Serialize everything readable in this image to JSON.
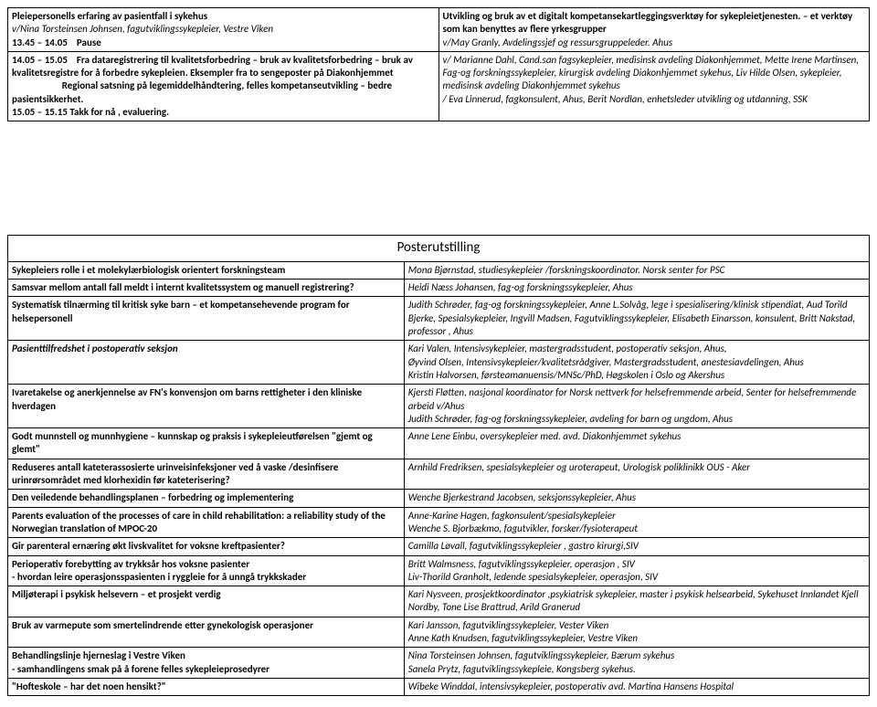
{
  "top_rows": [
    {
      "left": [
        {
          "text": "Pleiepersonells erfaring av pasientfall i sykehus",
          "bold": true
        },
        {
          "text": "v/Nina Torsteinsen Johnsen, fagutviklingssykepleier, Vestre Viken",
          "italic": true
        },
        {
          "text": "13.45 – 14.05    Pause",
          "bold": true
        }
      ],
      "right": [
        {
          "text": "Utvikling og bruk av et digitalt kompetansekartleggingsverktøy for sykepleietjenesten. – et verktøy som kan benyttes av flere yrkesgrupper",
          "bold": true
        },
        {
          "text": "v/May Granly, Avdelingssjef og ressursgruppeleder. Ahus",
          "italic": true
        }
      ]
    },
    {
      "left": [
        {
          "text": "14.05 – 15.05    Fra dataregistrering til kvalitetsforbedring – bruk av kvalitetsforbedring – bruk av kvalitetsregistre for å forbedre sykepleien. Eksempler fra to sengeposter på Diakonhjemmet",
          "bold": true
        },
        {
          "text": "                      Regional satsning på legemiddelhåndtering,  felles kompetanseutvikling – bedre pasientsikkerhet.",
          "bold": true
        },
        {
          "text": "15.05 – 15.15 Takk for nå , evaluering.",
          "bold": true
        }
      ],
      "right": [
        {
          "text": "v/ Marianne Dahl, Cand.san fagsykepleier, medisinsk avdeling Diakonhjemmet, Mette Irene Martinsen, Fag-og forskningssykepleier, kirurgisk avdeling Diakonhjemmet sykehus, Liv Hilde Olsen, sykepleier, medisinsk avdeling Diakonhjemmet sykehus",
          "italic": true
        },
        {
          "text": "/ Eva Linnerud, fagkonsulent, Ahus, Berit Nordlan, enhetsleder utvikling og utdanning, SSK",
          "italic": true
        }
      ]
    }
  ],
  "poster_title": "Posterutstilling",
  "poster_rows": [
    {
      "left": [
        {
          "text": "Sykepleiers rolle i et molekylærbiologisk orientert forskningsteam",
          "bold": true
        }
      ],
      "right": [
        {
          "text": "Mona Bjørnstad, studiesykepleier /forskningskoordinator. Norsk senter for PSC",
          "italic": true
        }
      ]
    },
    {
      "left": [
        {
          "text": "Samsvar mellom antall fall meldt i internt kvalitetssystem og manuell registrering?",
          "bold": true
        }
      ],
      "right": [
        {
          "text": "Heidi Næss Johansen, fag-og forskningssykepleier, Ahus",
          "italic": true
        }
      ]
    },
    {
      "left": [
        {
          "text": "Systematisk tilnærming til kritisk syke barn – et kompetansehevende program for helsepersonell",
          "bold": true
        }
      ],
      "right": [
        {
          "text": "Judith Schrøder, fag-og forskningssykepleier, Anne L.Solvåg, lege i spesialisering/klinisk stipendiat, Aud Torild Bjerke, Spesialsykepleier, Ingvill Madsen, Fagutviklingssykepleier, Elisabeth Einarsson, konsulent, Britt Nakstad, professor , Ahus",
          "italic": true
        }
      ]
    },
    {
      "left": [
        {
          "text": "Pasienttilfredshet i postoperativ seksjon",
          "bold": true,
          "italic": true
        }
      ],
      "right": [
        {
          "text": "Kari Valen, Intensivsykepleier, mastergradsstudent, postoperativ seksjon, Ahus,",
          "italic": true
        },
        {
          "text": "Øyvind Olsen, Intensivsykepleier/kvalitetsrådgiver, Mastergradsstudent, anestesiavdelingen, Ahus",
          "italic": true
        },
        {
          "text": "Kristin Halvorsen, førsteamanuensis/MNSc/PhD, Høgskolen i Oslo og Akershus",
          "italic": true
        }
      ]
    },
    {
      "left": [
        {
          "text": "Ivaretakelse og anerkjennelse av FN's konvensjon om barns rettigheter i den kliniske hverdagen",
          "bold": true
        }
      ],
      "right": [
        {
          "text": "Kjersti Fløtten, nasjonal koordinator for Norsk nettverk for helsefremmende arbeid, Senter for helsefremmende arbeid v/Ahus",
          "italic": true
        },
        {
          "text": "Judith Schrøder, fag-og forskningssykepleier, avdeling for barn og ungdom, Ahus",
          "italic": true
        }
      ]
    },
    {
      "left": [
        {
          "text": "Godt munnstell og munnhygiene – kunnskap og praksis i sykepleieutførelsen \"gjemt og glemt\"",
          "bold": true
        }
      ],
      "right": [
        {
          "text": "Anne Lene Einbu, oversykepleier med. avd. Diakonhjemmet sykehus",
          "italic": true
        }
      ]
    },
    {
      "left": [
        {
          "text": "Reduseres antall kateterassosierte urinveisinfeksjoner ved å vaske /desinfisere urinrørsområdet med klorhexidin før kateterisering?",
          "bold": true
        }
      ],
      "right": [
        {
          "text": "Arnhild Fredriksen, spesialsykepleier og uroterapeut, Urologisk poliklinikk OUS - Aker",
          "italic": true
        }
      ]
    },
    {
      "left": [
        {
          "text": "Den veiledende behandlingsplanen – forbedring og implementering",
          "bold": true
        }
      ],
      "right": [
        {
          "text": "Wenche Bjerkestrand Jacobsen, seksjonssykepleier, Ahus",
          "italic": true
        }
      ]
    },
    {
      "left": [
        {
          "text": "Parents evaluation of the processes of care in child rehabilitation: a reliability study of the Norwegian translation of MPOC-20",
          "bold": true
        }
      ],
      "right": [
        {
          "text": "Anne-Karine Hagen, fagkonsulent/spesialsykepleier",
          "italic": true
        },
        {
          "text": "Wenche S. Bjorbækmo, fagutvikler, forsker/fysioterapeut",
          "italic": true
        }
      ]
    },
    {
      "left": [
        {
          "text": "Gir parenteral ernæring økt livskvalitet for voksne kreftpasienter?",
          "bold": true
        }
      ],
      "right": [
        {
          "text": "Camilla Løvall, fagutviklingssykepleier , gastro kirurgi,SIV",
          "italic": true
        }
      ]
    },
    {
      "left": [
        {
          "text": "Perioperativ forebytting av trykksår hos voksne pasienter",
          "bold": true
        },
        {
          "text": "- hvordan leire operasjonsspasienten i ryggleie for å unngå trykkskader",
          "bold": true
        }
      ],
      "right": [
        {
          "text": "Britt Walmsness, fagutviklingssykepleier, operasjon , SIV",
          "italic": true
        },
        {
          "text": "Liv-Thorild Granholt, ledende spesialsykepleier, operasjon, SIV",
          "italic": true
        }
      ]
    },
    {
      "left": [
        {
          "text": "Miljøterapi i psykisk helsevern – et prosjekt verdig",
          "bold": true
        }
      ],
      "right": [
        {
          "text": "Kari Nysveen, prosjektkoordinator ,psykiatrisk sykepleier, master i psykisk helsearbeid, Sykehuset Innlandet Kjell Nordby, Tone Lise Brattrud, Arild Granerud",
          "italic": true
        }
      ]
    },
    {
      "left": [
        {
          "text": "Bruk av varmepute som smertelindrende etter gynekologisk operasjoner",
          "bold": true
        }
      ],
      "right": [
        {
          "text": "Kari Jansson, fagutviklingssykepleier,  Vester Viken",
          "italic": true
        },
        {
          "text": "Anne Kath Knudsen, fagutviklingssykepleier, Vestre Viken",
          "italic": true
        }
      ]
    },
    {
      "left": [
        {
          "text": "Behandlingslinje hjerneslag i Vestre Viken",
          "bold": true
        },
        {
          "text": "- samhandlingens smak på å forene felles sykepleieprosedyrer",
          "bold": true
        }
      ],
      "right": [
        {
          "text": "Nina Torsteinsen Johnsen, fagutviklingssykepleier, Bærum sykehus",
          "italic": true
        },
        {
          "text": "Sanela Prytz, fagutviklingssykepleie, Kongsberg sykehus.",
          "italic": true
        }
      ]
    },
    {
      "left": [
        {
          "text": "\"Hofteskole – har det noen hensikt?\"",
          "bold": true
        }
      ],
      "right": [
        {
          "text": "Wibeke Winddal, intensivsykepleier, postoperativ avd. Martina Hansens Hospital",
          "italic": true
        }
      ]
    }
  ]
}
